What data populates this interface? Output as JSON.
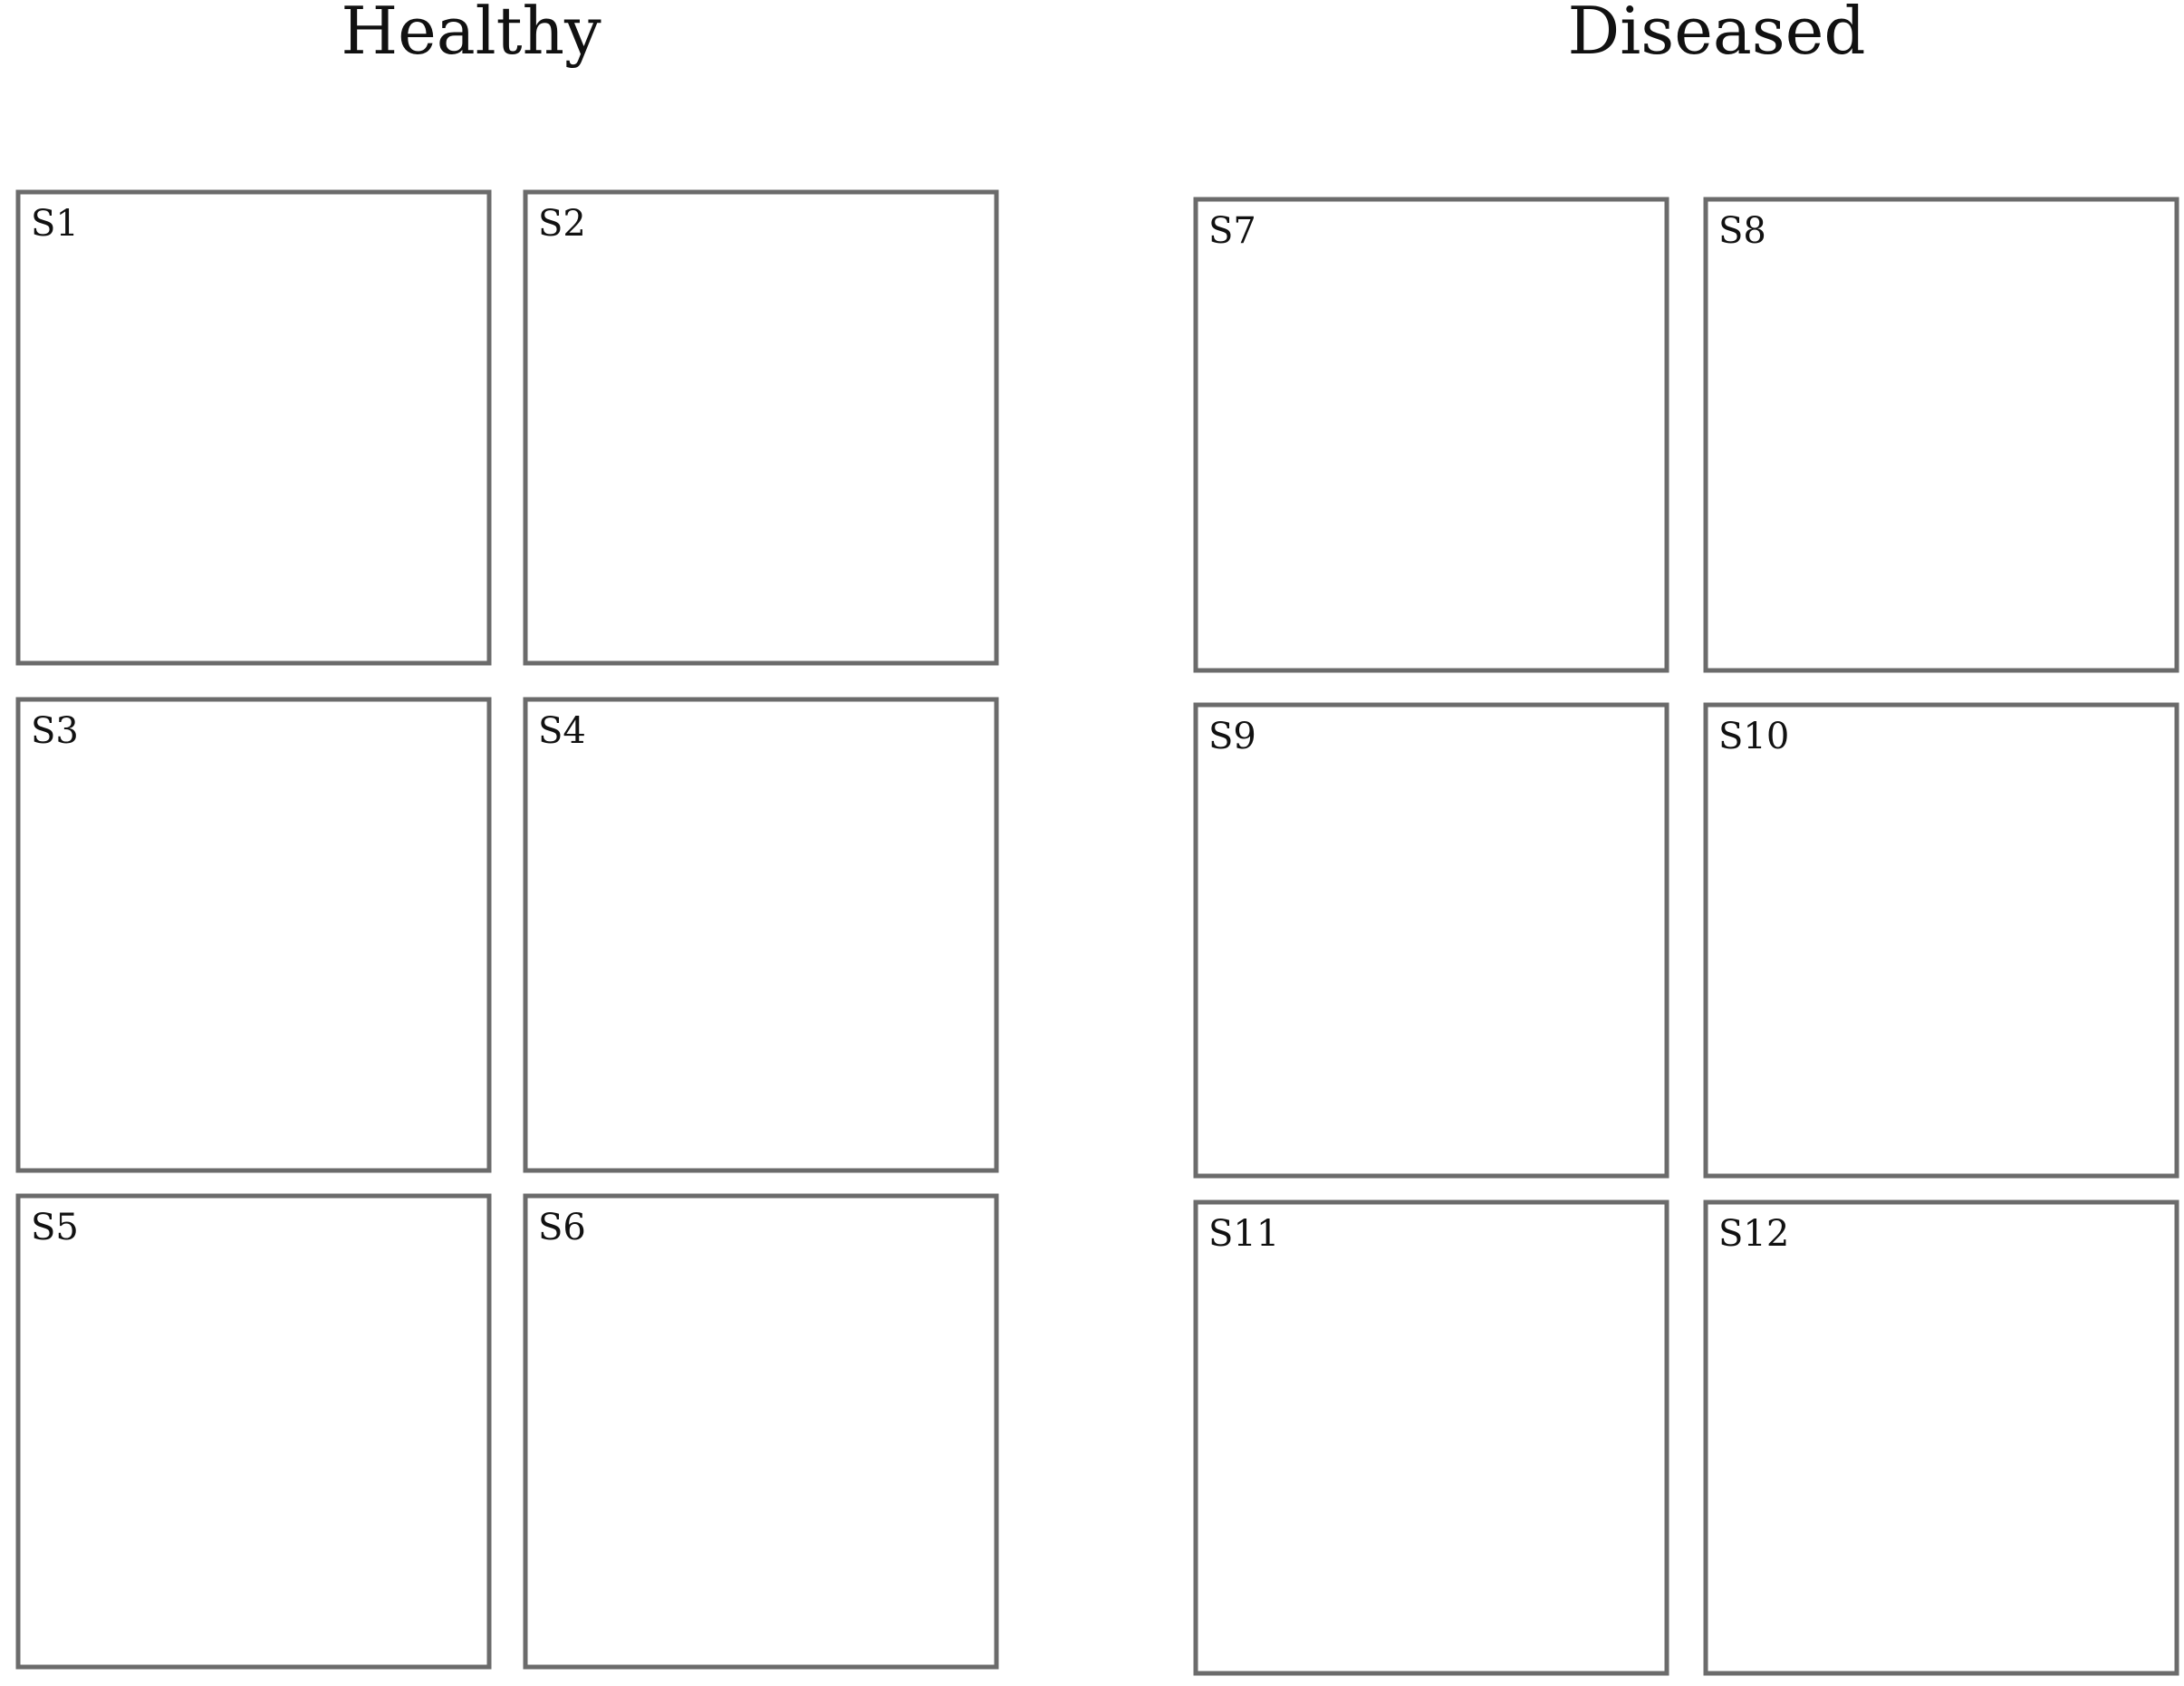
{
  "groups": {
    "healthy": {
      "title": "Healthy",
      "panels": [
        "S1",
        "S2",
        "S3",
        "S4",
        "S5",
        "S6"
      ]
    },
    "diseased": {
      "title": "Diseased",
      "panels": [
        "S7",
        "S8",
        "S9",
        "S10",
        "S11",
        "S12"
      ]
    }
  },
  "colors": {
    "rod": "#6ecbd2",
    "rod_border": "#4fb5bf",
    "spirillum": "#b04aa0",
    "spirillum_dark": "#8a3583",
    "needle": "#0e9140",
    "flagellate": "#a57545",
    "flagellate_border": "#7c5230",
    "frame": "#6b6b6b"
  },
  "organisms": {
    "rod": "rod-bacterium-icon",
    "spirillum": "spiral-bacterium-icon",
    "needle": "needle-bacterium-icon",
    "flagellate": "flagellated-bacterium-icon"
  }
}
